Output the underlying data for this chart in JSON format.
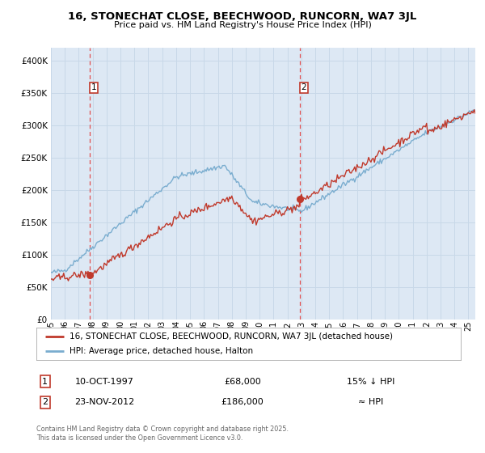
{
  "title1": "16, STONECHAT CLOSE, BEECHWOOD, RUNCORN, WA7 3JL",
  "title2": "Price paid vs. HM Land Registry's House Price Index (HPI)",
  "legend_red": "16, STONECHAT CLOSE, BEECHWOOD, RUNCORN, WA7 3JL (detached house)",
  "legend_blue": "HPI: Average price, detached house, Halton",
  "marker1_date": "10-OCT-1997",
  "marker1_price": 68000,
  "marker1_note": "15% ↓ HPI",
  "marker2_date": "23-NOV-2012",
  "marker2_price": 186000,
  "marker2_note": "≈ HPI",
  "footer": "Contains HM Land Registry data © Crown copyright and database right 2025.\nThis data is licensed under the Open Government Licence v3.0.",
  "red_color": "#c0392b",
  "blue_color": "#7aadcf",
  "bg_color": "#dde8f4",
  "plot_bg": "#ffffff",
  "grid_color": "#c8d8e8",
  "marker_line_color": "#e05050",
  "ylim": [
    0,
    420000
  ],
  "yticks": [
    0,
    50000,
    100000,
    150000,
    200000,
    250000,
    300000,
    350000,
    400000
  ],
  "xlim_start": 1995.0,
  "xlim_end": 2025.5
}
